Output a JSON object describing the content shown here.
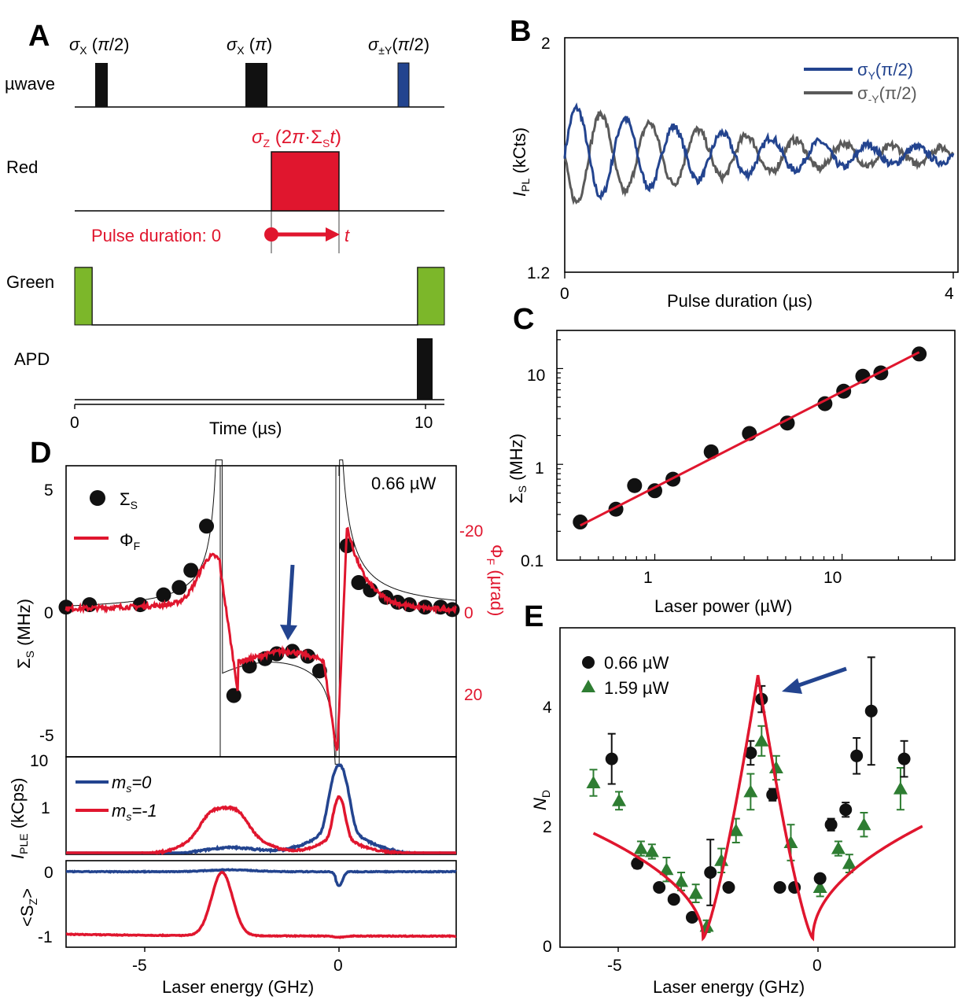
{
  "panel_letters": {
    "a": "A",
    "b": "B",
    "c": "C",
    "d": "D",
    "e": "E"
  },
  "colors": {
    "blue": "#23448f",
    "gray": "#5a5a5a",
    "red": "#e0162e",
    "green": "#2e7d32",
    "lime": "#7cb72a",
    "black": "#111111"
  },
  "chart_data": [
    {
      "panel": "A",
      "type": "pulse-sequence",
      "rows": [
        "µwave",
        "Red",
        "Green",
        "APD"
      ],
      "pulses": [
        "σX (π/2)",
        "σX (π)",
        "σ±Y(π/2)"
      ],
      "red_pulse_label": "σZ (2π·ΣSt)",
      "pulse_duration_text": "Pulse duration: 0",
      "t_label": "t",
      "xlabel": "Time (µs)",
      "xticks": [
        "0",
        "10"
      ]
    },
    {
      "panel": "B",
      "type": "line",
      "xlabel": "Pulse duration (µs)",
      "ylabel": "IPL (kCts)",
      "xlim": [
        0,
        4
      ],
      "ylim": [
        1.2,
        2.0
      ],
      "xticks": [
        "0",
        "4"
      ],
      "yticks": [
        "1.2",
        "2"
      ],
      "series": [
        {
          "name": "σY(π/2)",
          "amplitude": 0.17,
          "decay_us": 2.0,
          "period_us": 0.5,
          "phase": "starts rising",
          "offset": 1.6
        },
        {
          "name": "σ-Y(π/2)",
          "amplitude": 0.17,
          "decay_us": 2.0,
          "period_us": 0.5,
          "phase": "starts falling",
          "offset": 1.6
        }
      ]
    },
    {
      "panel": "C",
      "type": "scatter",
      "xlabel": "Laser power (µW)",
      "ylabel": "ΣS (MHz)",
      "xscale": "log",
      "yscale": "log",
      "xticks": [
        "1",
        "10"
      ],
      "yticks": [
        "0.1",
        "1",
        "10"
      ],
      "x": [
        0.4,
        0.62,
        0.78,
        1.0,
        1.25,
        2.0,
        3.2,
        5.1,
        8.1,
        10.2,
        12.9,
        16.1,
        25.8
      ],
      "y": [
        0.25,
        0.34,
        0.6,
        0.53,
        0.7,
        1.35,
        2.1,
        2.7,
        4.3,
        5.8,
        8.3,
        9.0,
        14.2
      ],
      "fit": {
        "x": [
          0.4,
          25.8
        ],
        "y": [
          0.23,
          14.8
        ]
      }
    },
    {
      "panel": "D-top",
      "type": "scatter+line",
      "xlim": [
        -7,
        3
      ],
      "ylabel": "ΣS (MHz)",
      "ylabel_right": "ΦF (µrad)",
      "yticks": [
        "5",
        "0",
        "-5"
      ],
      "yticks_right": [
        "-20",
        "0",
        "20"
      ],
      "annotation": "0.66 µW",
      "legend": [
        "ΣS",
        "ΦF"
      ],
      "points_x": [
        -7.0,
        -6.4,
        -5.1,
        -4.5,
        -4.1,
        -3.8,
        -3.4,
        -2.7,
        -2.3,
        -1.9,
        -1.6,
        -1.2,
        -0.8,
        -0.5,
        0.2,
        0.5,
        0.8,
        1.2,
        1.5,
        1.8,
        2.2,
        2.6,
        2.9
      ],
      "points_y": [
        0.2,
        0.3,
        0.3,
        0.7,
        1.0,
        1.7,
        3.5,
        -3.4,
        -2.2,
        -1.9,
        -1.7,
        -1.6,
        -1.8,
        -2.4,
        2.7,
        1.2,
        0.9,
        0.6,
        0.4,
        0.3,
        0.2,
        0.2,
        0.1
      ]
    },
    {
      "panel": "D-middle",
      "type": "line",
      "ylabel": "IPLE (kCps)",
      "yscale": "log",
      "yticks": [
        "10",
        "1"
      ],
      "legend": [
        "ms=0",
        "ms=-1"
      ]
    },
    {
      "panel": "D-bottom",
      "type": "line",
      "xlabel": "Laser energy (GHz)",
      "ylabel": "<SZ>",
      "xticks": [
        "-5",
        "0"
      ],
      "yticks": [
        "0",
        "-1"
      ]
    },
    {
      "panel": "E",
      "type": "scatter+line",
      "xlabel": "Laser energy (GHz)",
      "ylabel": "ND",
      "xlim": [
        -7,
        3.8
      ],
      "ylim": [
        0,
        5.3
      ],
      "xticks": [
        "-5",
        "0"
      ],
      "yticks": [
        "0",
        "2",
        "4"
      ],
      "series": [
        {
          "name": "0.66 µW",
          "x": [
            -5.5,
            -4.8,
            -4.2,
            -3.8,
            -3.3,
            -2.8,
            -2.3,
            -1.7,
            -1.4,
            -1.1,
            -0.9,
            -0.5,
            0.2,
            0.5,
            0.9,
            1.2,
            1.6,
            2.5
          ],
          "y": [
            3.15,
            1.4,
            1.0,
            0.8,
            0.5,
            1.25,
            1.0,
            3.25,
            4.15,
            2.55,
            1.0,
            1.0,
            1.15,
            2.05,
            2.3,
            3.2,
            3.95,
            3.15
          ],
          "err": [
            0.42,
            0.08,
            0.05,
            0.05,
            0.05,
            0.55,
            0.05,
            0.2,
            0.22,
            0.1,
            0.05,
            0.05,
            0.05,
            0.1,
            0.12,
            0.3,
            0.9,
            0.3
          ]
        },
        {
          "name": "1.59 µW",
          "x": [
            -6.0,
            -5.3,
            -4.7,
            -4.4,
            -4.0,
            -3.6,
            -3.2,
            -2.9,
            -2.5,
            -2.1,
            -1.7,
            -1.4,
            -1.0,
            -0.6,
            0.2,
            0.7,
            1.0,
            1.4,
            2.4
          ],
          "y": [
            2.75,
            2.45,
            1.65,
            1.6,
            1.3,
            1.1,
            0.9,
            0.35,
            1.45,
            1.95,
            2.6,
            3.45,
            3.0,
            1.75,
            1.0,
            1.65,
            1.4,
            2.05,
            2.65
          ],
          "err": [
            0.22,
            0.15,
            0.12,
            0.12,
            0.2,
            0.15,
            0.15,
            0.1,
            0.2,
            0.2,
            0.3,
            0.25,
            0.2,
            0.3,
            0.15,
            0.12,
            0.15,
            0.2,
            0.35
          ]
        }
      ]
    }
  ]
}
